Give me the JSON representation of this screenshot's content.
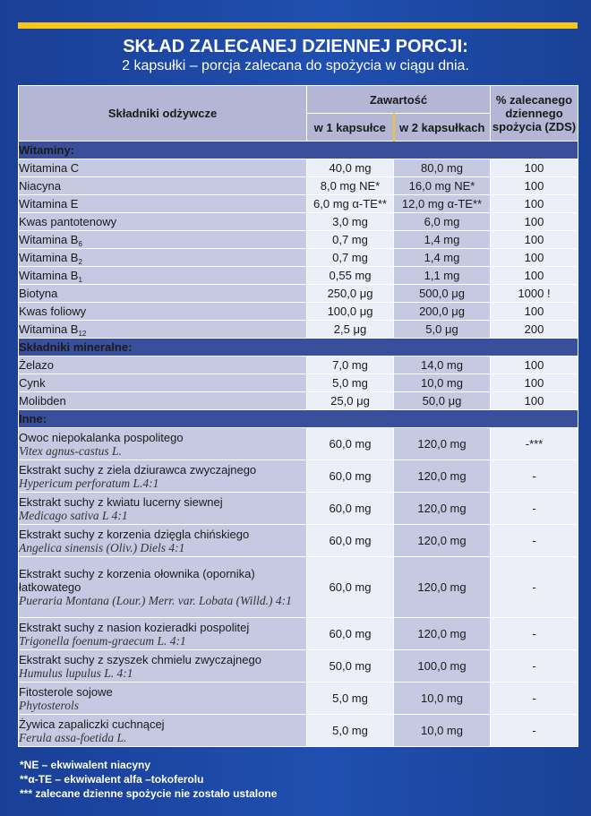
{
  "title": "SKŁAD ZALECANEJ DZIENNEJ PORCJI:",
  "subtitle": "2 kapsułki – porcja zalecana do spożycia w ciągu dnia.",
  "headers": {
    "ingredients": "Składniki odżywcze",
    "content": "Zawartość",
    "one_capsule": "w 1 kapsułce",
    "two_capsules": "w 2 kapsułkach",
    "pct": "% zalecanego dziennego spożycia (ZDS)"
  },
  "sections": [
    {
      "title": "Witaminy:",
      "rows": [
        {
          "name": "Witamina C",
          "v1": "40,0 mg",
          "v2": "80,0 mg",
          "pct": "100"
        },
        {
          "name": "Niacyna",
          "v1": "8,0 mg NE*",
          "v2": "16,0 mg NE*",
          "pct": "100"
        },
        {
          "name": "Witamina E",
          "v1": "6,0 mg α-TE**",
          "v2": "12,0 mg α-TE**",
          "pct": "100"
        },
        {
          "name": "Kwas pantotenowy",
          "v1": "3,0 mg",
          "v2": "6,0 mg",
          "pct": "100"
        },
        {
          "name": "Witamina B",
          "sub": "6",
          "v1": "0,7 mg",
          "v2": "1,4 mg",
          "pct": "100"
        },
        {
          "name": "Witamina B",
          "sub": "2",
          "v1": "0,7 mg",
          "v2": "1,4 mg",
          "pct": "100"
        },
        {
          "name": "Witamina B",
          "sub": "1",
          "v1": "0,55 mg",
          "v2": "1,1 mg",
          "pct": "100"
        },
        {
          "name": "Biotyna",
          "v1": "250,0 μg",
          "v2": "500,0 μg",
          "pct": "1000 !"
        },
        {
          "name": "Kwas foliowy",
          "v1": "100,0 μg",
          "v2": "200,0 μg",
          "pct": "100"
        },
        {
          "name": "Witamina B",
          "sub": "12",
          "v1": "2,5 μg",
          "v2": "5,0 μg",
          "pct": "200"
        }
      ]
    },
    {
      "title": "Składniki mineralne:",
      "rows": [
        {
          "name": "Żelazo",
          "v1": "7,0 mg",
          "v2": "14,0 mg",
          "pct": "100"
        },
        {
          "name": "Cynk",
          "v1": "5,0 mg",
          "v2": "10,0 mg",
          "pct": "100"
        },
        {
          "name": "Molibden",
          "v1": "25,0 μg",
          "v2": "50,0 μg",
          "pct": "100"
        }
      ]
    },
    {
      "title": "Inne:",
      "rows": [
        {
          "name": "Owoc niepokalanka pospolitego",
          "latin": "Vitex agnus-castus L.",
          "v1": "60,0 mg",
          "v2": "120,0 mg",
          "pct": "-***"
        },
        {
          "name": "Ekstrakt suchy z ziela dziurawca zwyczajnego",
          "latin": "Hypericum perforatum L.4:1",
          "v1": "60,0 mg",
          "v2": "120,0 mg",
          "pct": "-"
        },
        {
          "name": "Ekstrakt suchy z kwiatu lucerny siewnej",
          "latin": "Medicago sativa L 4:1",
          "v1": "60,0 mg",
          "v2": "120,0 mg",
          "pct": "-"
        },
        {
          "name": "Ekstrakt suchy z korzenia dzięgla chińskiego",
          "latin": "Angelica sinensis (Oliv.) Diels 4:1",
          "v1": "60,0 mg",
          "v2": "120,0 mg",
          "pct": "-"
        },
        {
          "name": "Ekstrakt suchy z korzenia ołownika (opornika) łatkowatego",
          "latin": "Pueraria Montana (Lour.) Merr. var. Lobata (Willd.) 4:1",
          "v1": "60,0 mg",
          "v2": "120,0 mg",
          "pct": "-"
        },
        {
          "name": "Ekstrakt suchy z nasion kozieradki pospolitej",
          "latin": "Trigonella foenum-graecum L. 4:1",
          "v1": "60,0 mg",
          "v2": "120,0 mg",
          "pct": "-"
        },
        {
          "name": "Ekstrakt suchy z szyszek chmielu zwyczajnego",
          "latin": "Humulus lupulus  L. 4:1",
          "v1": "50,0 mg",
          "v2": "100,0 mg",
          "pct": "-"
        },
        {
          "name": "Fitosterole sojowe",
          "latin": "Phytosterols",
          "v1": "5,0 mg",
          "v2": "10,0 mg",
          "pct": "-"
        },
        {
          "name": "Żywica zapaliczki cuchnącej",
          "latin": "Ferula assa-foetida L.",
          "v1": "5,0 mg",
          "v2": "10,0 mg",
          "pct": "-"
        }
      ]
    }
  ],
  "footnotes": [
    "*NE – ekwiwalent niacyny",
    "**α-TE – ekwiwalent alfa –tokoferolu",
    "*** zalecane dzienne spożycie nie zostało ustalone"
  ],
  "colors": {
    "background": "#1f4fb0",
    "accent_bar": "#f7c61b",
    "section_header": "#3a4f9c",
    "header_cell": "#b3b6d4"
  }
}
